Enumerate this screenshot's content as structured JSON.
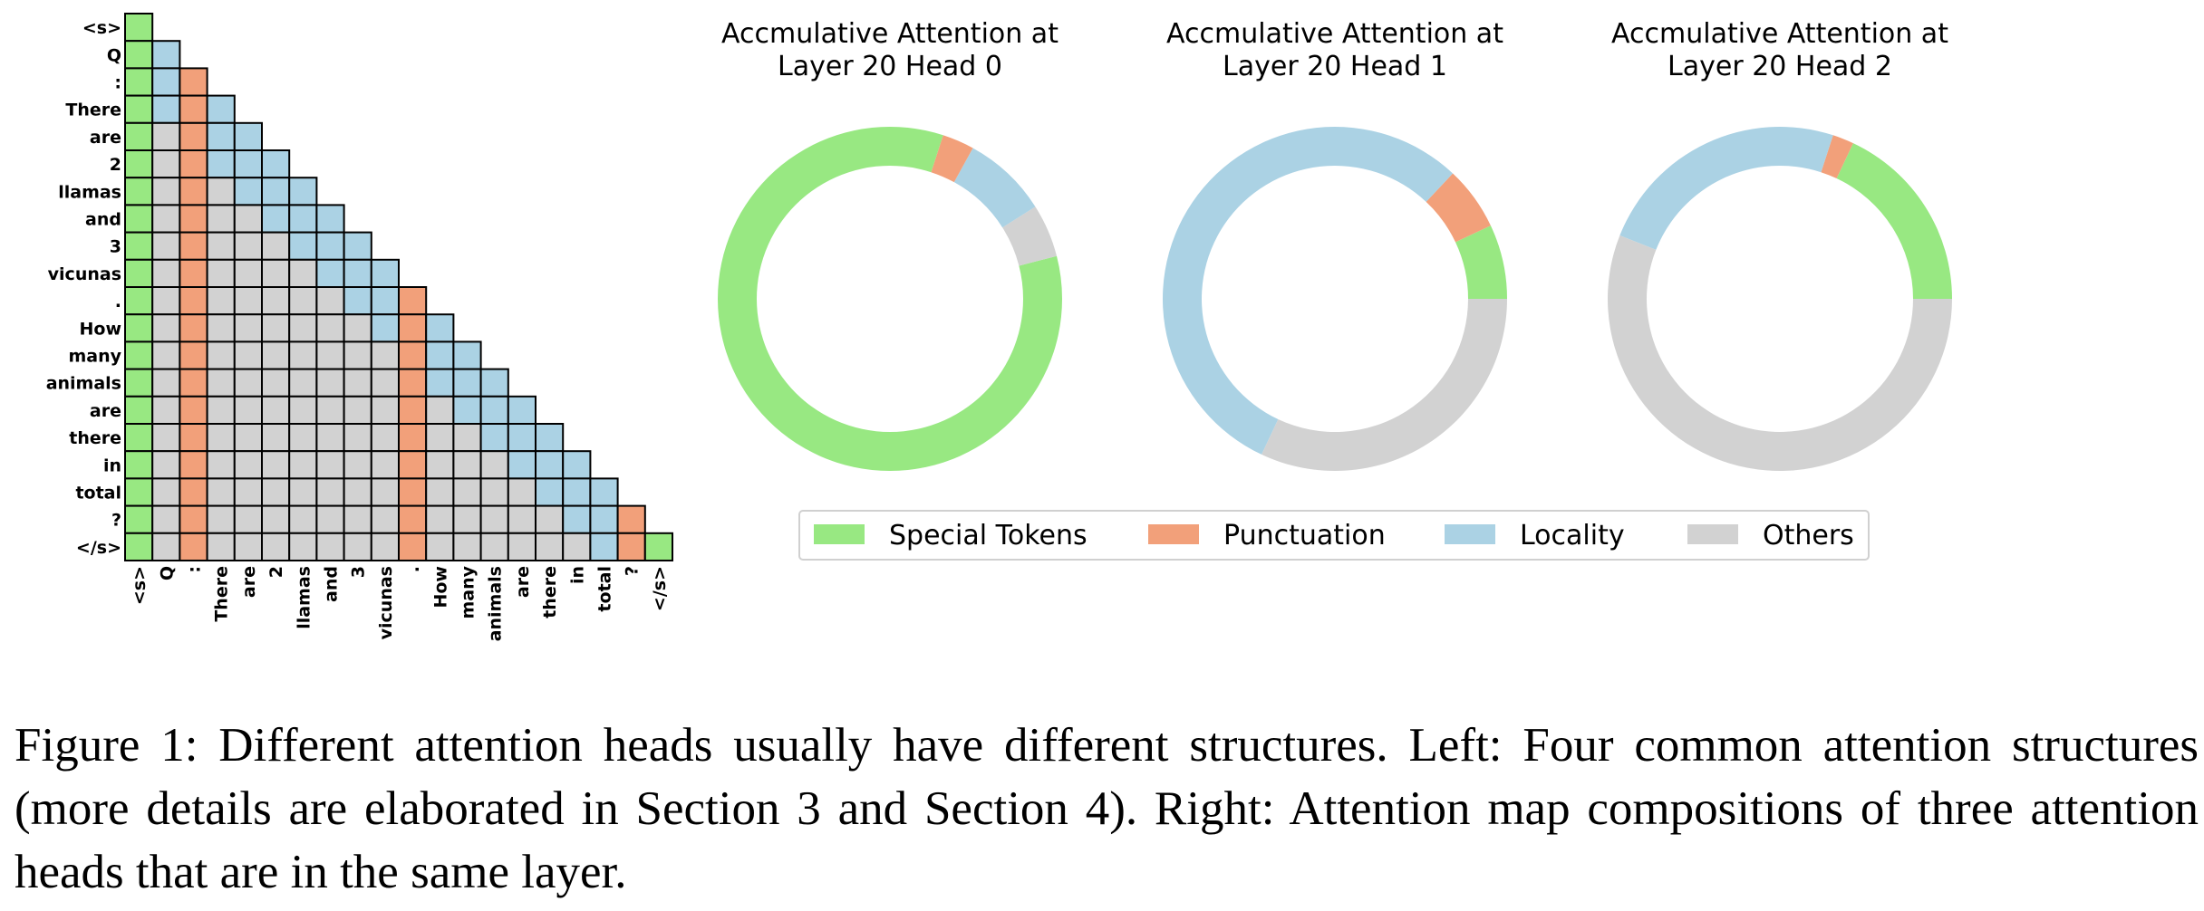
{
  "chart_data": [
    {
      "type": "heatmap",
      "title": "",
      "tokens": [
        "<s>",
        "Q",
        ":",
        "There",
        "are",
        "2",
        "llamas",
        "and",
        "3",
        "vicunas",
        ".",
        "How",
        "many",
        "animals",
        "are",
        "there",
        "in",
        "total",
        "?",
        "</s>"
      ],
      "punctuation_columns": [
        2,
        10,
        18
      ],
      "categories": [
        "Special Tokens",
        "Punctuation",
        "Locality",
        "Others"
      ],
      "colors": {
        "Special Tokens": "#98e882",
        "Punctuation": "#f2a07a",
        "Locality": "#abd2e4",
        "Others": "#d2d2d2"
      }
    },
    {
      "type": "pie",
      "title": "Accmulative Attention at\nLayer 20 Head 0",
      "labels": [
        "Special Tokens",
        "Others",
        "Locality",
        "Punctuation",
        "Special Tokens"
      ],
      "values": [
        4,
        5,
        8,
        3,
        80
      ]
    },
    {
      "type": "pie",
      "title": "Accmulative Attention at\nLayer 20 Head 1",
      "labels": [
        "Special Tokens",
        "Punctuation",
        "Locality",
        "Others"
      ],
      "values": [
        7,
        6,
        55,
        32
      ]
    },
    {
      "type": "pie",
      "title": "Accmulative Attention at\nLayer 20 Head 2",
      "labels": [
        "Special Tokens",
        "Punctuation",
        "Locality",
        "Others"
      ],
      "values": [
        18,
        2,
        24,
        56
      ]
    }
  ],
  "legend": [
    {
      "label": "Special Tokens",
      "color": "#98e882"
    },
    {
      "label": "Punctuation",
      "color": "#f2a07a"
    },
    {
      "label": "Locality",
      "color": "#abd2e4"
    },
    {
      "label": "Others",
      "color": "#d2d2d2"
    }
  ],
  "caption": "Figure 1: Different attention heads usually have different structures. Left: Four common attention struc­tures (more details are elaborated in Section 3 and Section 4). Right: Attention map composi­tions of three attention heads that are in the same layer."
}
